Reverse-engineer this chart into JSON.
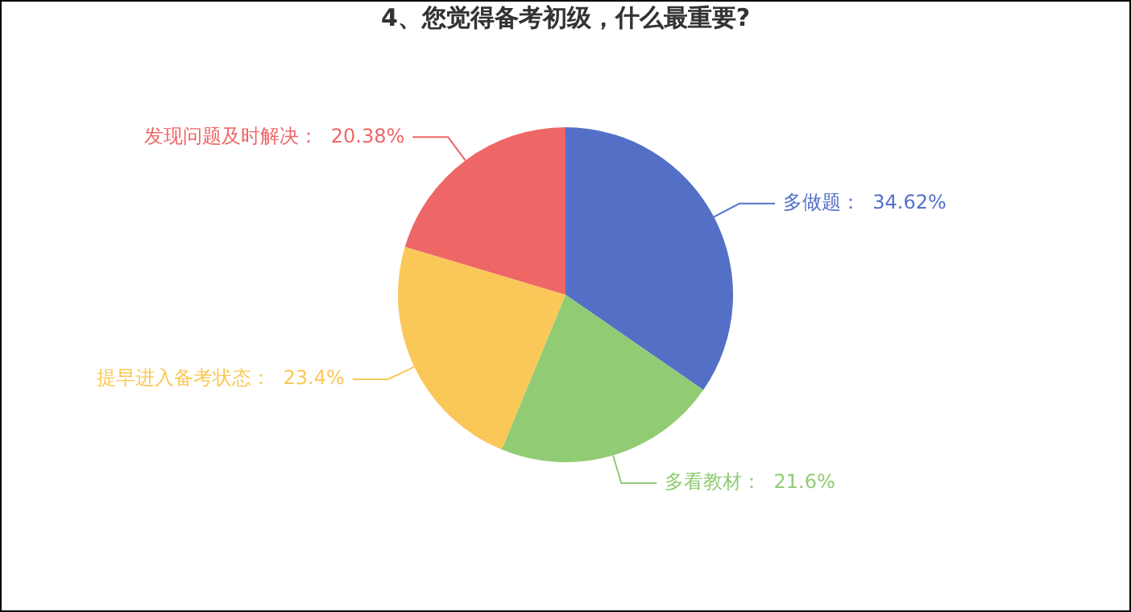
{
  "chart_data": {
    "type": "pie",
    "title": "4、您觉得备考初级，什么最重要?",
    "categories": [
      "多做题",
      "多看教材",
      "提早进入备考状态",
      "发现问题及时解决"
    ],
    "values": [
      34.62,
      21.6,
      23.4,
      20.38
    ],
    "value_labels": [
      "34.62%",
      "21.6%",
      "23.4%",
      "20.38%"
    ],
    "colors": [
      "#5470c6",
      "#91cc75",
      "#fac858",
      "#ee6666"
    ],
    "legend": false
  }
}
